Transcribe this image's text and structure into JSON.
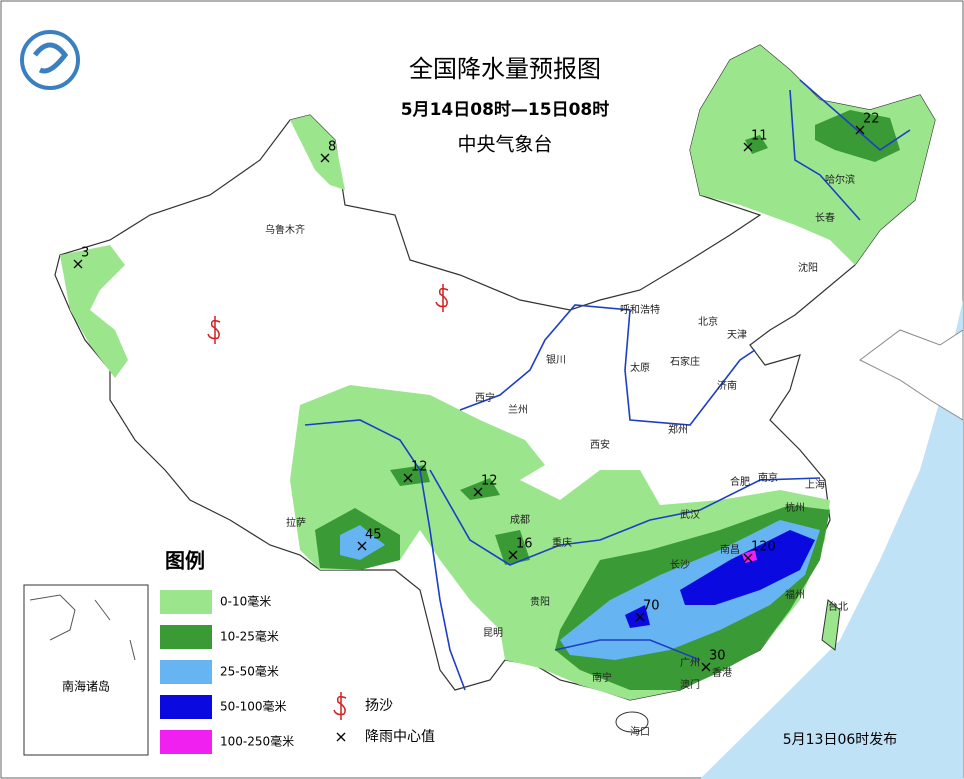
{
  "header": {
    "title": "全国降水量预报图",
    "period": "5月14日08时—15日08时",
    "issuer": "中央气象台"
  },
  "cities": [
    "乌鲁木齐",
    "哈尔滨",
    "长春",
    "沈阳",
    "呼和浩特",
    "北京",
    "天津",
    "银川",
    "太原",
    "石家庄",
    "济南",
    "西宁",
    "兰州",
    "西安",
    "郑州",
    "合肥",
    "南京",
    "上海",
    "拉萨",
    "成都",
    "重庆",
    "武汉",
    "杭州",
    "长沙",
    "南昌",
    "贵阳",
    "福州",
    "台北",
    "昆明",
    "南宁",
    "广州",
    "香港",
    "澳门",
    "海口"
  ],
  "rain_centers": [
    8,
    3,
    11,
    22,
    12,
    12,
    45,
    16,
    120,
    70,
    30
  ],
  "legend": {
    "title": "图例",
    "items": [
      {
        "label": "0-10毫米",
        "color": "#9be68c"
      },
      {
        "label": "10-25毫米",
        "color": "#3a9a35"
      },
      {
        "label": "25-50毫米",
        "color": "#66b4f2"
      },
      {
        "label": "50-100毫米",
        "color": "#0a0ae0"
      },
      {
        "label": "100-250毫米",
        "color": "#f020f0"
      }
    ],
    "symbols": [
      "扬沙",
      "降雨中心值"
    ]
  },
  "inset_label": "南海诸岛",
  "footer": "5月13日06时发布"
}
